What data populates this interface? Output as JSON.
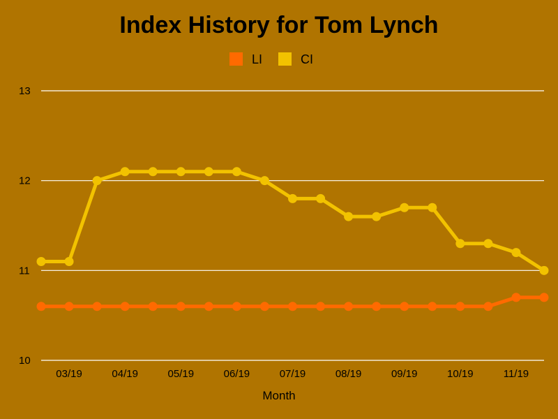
{
  "chart_data": {
    "type": "line",
    "title": "Index History for Tom Lynch",
    "xlabel": "Month",
    "ylabel": "",
    "ylim": [
      10,
      13
    ],
    "yticks": [
      "10",
      "11",
      "12",
      "13"
    ],
    "x_tick_labels": [
      "03/19",
      "04/19",
      "05/19",
      "06/19",
      "07/19",
      "08/19",
      "09/19",
      "10/19",
      "11/19"
    ],
    "grid": "horizontal",
    "legend_position": "top-center",
    "colors": {
      "background": "#b07400",
      "LI": "#ff6a00",
      "CI": "#f2c200",
      "grid": "#ffffff"
    },
    "series": [
      {
        "name": "LI",
        "values": [
          10.6,
          10.6,
          10.6,
          10.6,
          10.6,
          10.6,
          10.6,
          10.6,
          10.6,
          10.6,
          10.6,
          10.6,
          10.6,
          10.6,
          10.6,
          10.6,
          10.6,
          10.7,
          10.7
        ]
      },
      {
        "name": "CI",
        "values": [
          11.1,
          11.1,
          12.0,
          12.1,
          12.1,
          12.1,
          12.1,
          12.1,
          12.0,
          11.8,
          11.8,
          11.6,
          11.6,
          11.7,
          11.7,
          11.3,
          11.3,
          11.2,
          11.0
        ]
      }
    ]
  }
}
